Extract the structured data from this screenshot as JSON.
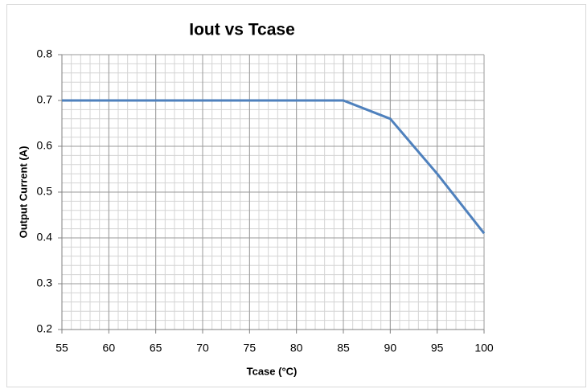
{
  "chart_data": {
    "type": "line",
    "title": "Iout vs Tcase",
    "x_label": "Tcase (°C)",
    "y_label": "Output  Current (A)",
    "x": [
      55,
      60,
      65,
      70,
      75,
      80,
      85,
      90,
      95,
      100
    ],
    "series": [
      {
        "name": "Iout",
        "color": "#4f81bd",
        "values": [
          0.7,
          0.7,
          0.7,
          0.7,
          0.7,
          0.7,
          0.7,
          0.66,
          0.54,
          0.41
        ]
      }
    ],
    "xlim": [
      55,
      100
    ],
    "xticks": [
      55,
      60,
      65,
      70,
      75,
      80,
      85,
      90,
      95,
      100
    ],
    "ylim": [
      0.2,
      0.8
    ],
    "yticks": [
      0.2,
      0.3,
      0.4,
      0.5,
      0.6,
      0.7,
      0.8
    ],
    "grid": true,
    "minor_grid": {
      "x": 1,
      "y": 0.02
    },
    "legend": false
  }
}
